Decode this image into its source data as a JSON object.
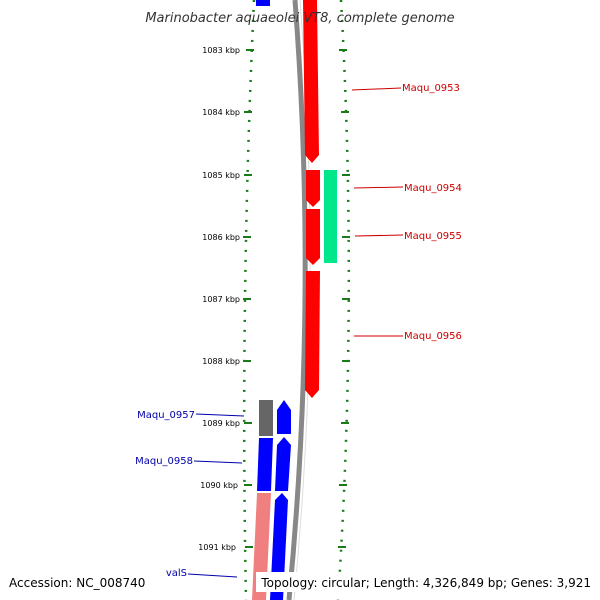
{
  "title": "Marinobacter aquaeolei VT8, complete genome",
  "ruler": {
    "ticks": [
      "1083 kbp",
      "1084 kbp",
      "1085 kbp",
      "1086 kbp",
      "1087 kbp",
      "1088 kbp",
      "1089 kbp",
      "1090 kbp",
      "1091 kbp"
    ],
    "tick_color": "#1a7a1a"
  },
  "genes": {
    "forward": [
      {
        "name": "Maqu_0953",
        "color": "#cc0000"
      },
      {
        "name": "Maqu_0954",
        "color": "#cc0000"
      },
      {
        "name": "Maqu_0955",
        "color": "#cc0000"
      },
      {
        "name": "Maqu_0956",
        "color": "#cc0000"
      }
    ],
    "reverse": [
      {
        "name": "Maqu_0957",
        "color": "#0000aa"
      },
      {
        "name": "Maqu_0958",
        "color": "#0000aa"
      },
      {
        "name": "valS",
        "color": "#0000aa"
      }
    ]
  },
  "colors": {
    "forward_cds": "#ff0000",
    "reverse_cds": "#0000ff",
    "forward_misc": "#00e68a",
    "reverse_misc": "#777777",
    "reverse_rna": "#f08080",
    "backbone": "#888888"
  },
  "footer": {
    "accession": "Accession: NC_008740",
    "stats": "Topology: circular; Length: 4,326,849 bp; Genes: 3,921"
  }
}
